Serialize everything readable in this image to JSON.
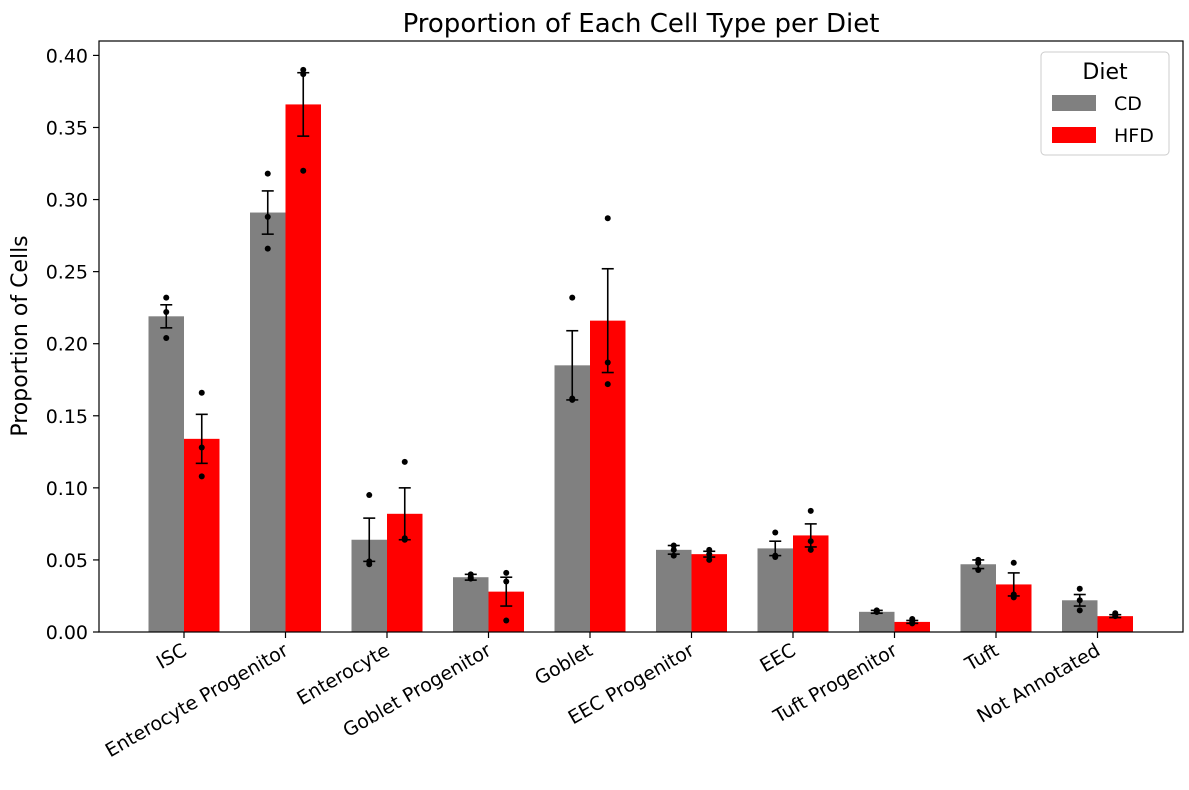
{
  "chart_data": {
    "type": "bar",
    "title": "Proportion of Each Cell Type per Diet",
    "xlabel": "",
    "ylabel": "Proportion of Cells",
    "ylim": [
      0,
      0.41
    ],
    "yticks": [
      "0.00",
      "0.05",
      "0.10",
      "0.15",
      "0.20",
      "0.25",
      "0.30",
      "0.35",
      "0.40"
    ],
    "categories": [
      "ISC",
      "Enterocyte Progenitor",
      "Enterocyte",
      "Goblet Progenitor",
      "Goblet",
      "EEC Progenitor",
      "EEC",
      "Tuft Progenitor",
      "Tuft",
      "Not Annotated"
    ],
    "legend": {
      "title": "Diet",
      "placement": "top-right"
    },
    "grid": false,
    "series": [
      {
        "name": "CD",
        "color": "#808080",
        "values": [
          0.219,
          0.291,
          0.064,
          0.038,
          0.185,
          0.057,
          0.058,
          0.014,
          0.047,
          0.022
        ],
        "errors": [
          0.008,
          0.015,
          0.015,
          0.002,
          0.024,
          0.003,
          0.005,
          0.001,
          0.003,
          0.004
        ],
        "points": [
          [
            0.232,
            0.222,
            0.204
          ],
          [
            0.318,
            0.288,
            0.266
          ],
          [
            0.095,
            0.049,
            0.047
          ],
          [
            0.04,
            0.038,
            0.037
          ],
          [
            0.232,
            0.162,
            0.161
          ],
          [
            0.06,
            0.057,
            0.053
          ],
          [
            0.069,
            0.053,
            0.052
          ],
          [
            0.015,
            0.014,
            0.014
          ],
          [
            0.05,
            0.048,
            0.043
          ],
          [
            0.03,
            0.022,
            0.015
          ]
        ]
      },
      {
        "name": "HFD",
        "color": "#ff0000",
        "values": [
          0.134,
          0.366,
          0.082,
          0.028,
          0.216,
          0.054,
          0.067,
          0.007,
          0.033,
          0.011
        ],
        "errors": [
          0.017,
          0.022,
          0.018,
          0.01,
          0.036,
          0.002,
          0.008,
          0.001,
          0.008,
          0.001
        ],
        "points": [
          [
            0.166,
            0.128,
            0.108
          ],
          [
            0.39,
            0.387,
            0.32
          ],
          [
            0.118,
            0.065,
            0.064
          ],
          [
            0.041,
            0.035,
            0.008
          ],
          [
            0.287,
            0.187,
            0.172
          ],
          [
            0.057,
            0.054,
            0.05
          ],
          [
            0.084,
            0.063,
            0.057
          ],
          [
            0.009,
            0.007,
            0.006
          ],
          [
            0.048,
            0.026,
            0.024
          ],
          [
            0.013,
            0.012,
            0.011
          ]
        ]
      }
    ]
  }
}
